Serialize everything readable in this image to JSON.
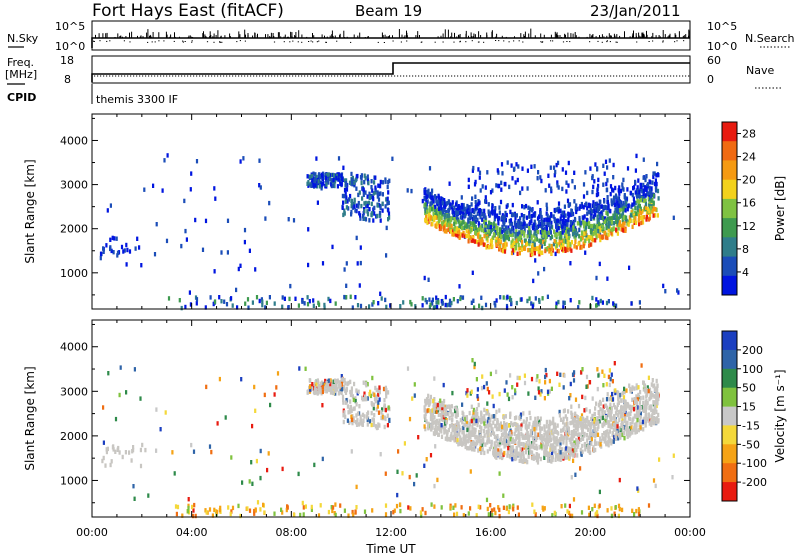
{
  "header": {
    "station": "Fort Hays East (fitACF)",
    "beam": "Beam 19",
    "date": "23/Jan/2011"
  },
  "strip_labels": {
    "nsky": "N.Sky",
    "nsearch": "N.Search",
    "freq": "Freq.",
    "freq_unit": "[MHz]",
    "nave": "Nave",
    "cpid": "CPID",
    "cpid_value": "themis 3300 IF",
    "nsky_ticks": [
      "10^5",
      "10^0"
    ],
    "nsearch_ticks": [
      "10^5",
      "10^0"
    ],
    "freq_ticks": [
      "18",
      "8"
    ],
    "nave_ticks": [
      "60",
      "0"
    ]
  },
  "colors": {
    "power": [
      "#0015e0",
      "#1b4db8",
      "#2f7d8a",
      "#3e9a4f",
      "#7fc242",
      "#f3d21c",
      "#f59a12",
      "#f06a12",
      "#e81b10"
    ],
    "velocity": [
      "#1b3fc0",
      "#2f64a8",
      "#2e8a4a",
      "#7fc23e",
      "#c8c8c8",
      "#f4d83a",
      "#f5a316",
      "#f06e12",
      "#e81b10"
    ],
    "gray_scatter": "#c8c6c2"
  },
  "chart_data": [
    {
      "type": "heatmap",
      "name": "power",
      "ylabel": "Slant Range [km]",
      "ylim": [
        180,
        4600
      ],
      "yticks": [
        1000,
        2000,
        3000,
        4000
      ],
      "xlim": [
        0,
        24
      ],
      "xticks": [
        "00:00",
        "04:00",
        "08:00",
        "12:00",
        "16:00",
        "20:00",
        "00:00"
      ],
      "colorbar": {
        "label": "Power [dB]",
        "ticks": [
          4,
          8,
          12,
          16,
          20,
          24,
          28
        ],
        "range": [
          0,
          30
        ]
      }
    },
    {
      "type": "heatmap",
      "name": "velocity",
      "ylabel": "Slant Range [km]",
      "ylim": [
        180,
        4600
      ],
      "yticks": [
        1000,
        2000,
        3000,
        4000
      ],
      "xlim": [
        0,
        24
      ],
      "xticks": [
        "00:00",
        "04:00",
        "08:00",
        "12:00",
        "16:00",
        "20:00",
        "00:00"
      ],
      "xlabel": "Time UT",
      "colorbar": {
        "label": "Velocity [m s⁻¹]",
        "ticks": [
          "200",
          "100",
          "50",
          "15",
          "-15",
          "-50",
          "-100",
          "-200"
        ]
      }
    }
  ]
}
